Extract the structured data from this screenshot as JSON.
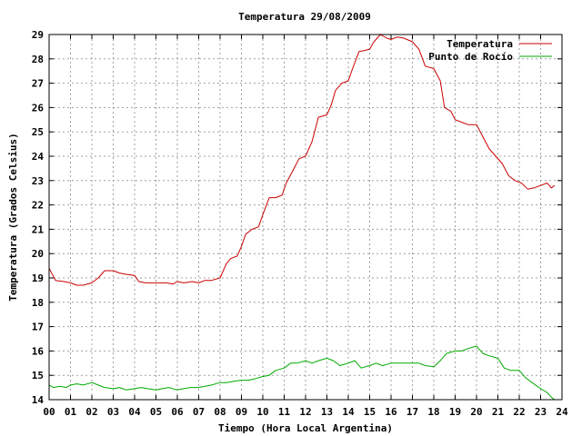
{
  "chart_data": {
    "type": "line",
    "title": "Temperatura 29/08/2009",
    "xlabel": "Tiempo (Hora Local Argentina)",
    "ylabel": "Temperatura (Grados Celsius)",
    "xlim": [
      0,
      24
    ],
    "ylim": [
      14,
      29
    ],
    "grid": true,
    "legend_position": "top-right",
    "x_ticks": [
      "00",
      "01",
      "02",
      "03",
      "04",
      "05",
      "06",
      "07",
      "08",
      "09",
      "10",
      "11",
      "12",
      "13",
      "14",
      "15",
      "16",
      "17",
      "18",
      "19",
      "20",
      "21",
      "22",
      "23",
      "24"
    ],
    "y_ticks": [
      "14",
      "15",
      "16",
      "17",
      "18",
      "19",
      "20",
      "21",
      "22",
      "23",
      "24",
      "25",
      "26",
      "27",
      "28",
      "29"
    ],
    "series": [
      {
        "name": "Temperatura",
        "color": "#cc0000",
        "points": [
          [
            0.0,
            19.4
          ],
          [
            0.3,
            18.9
          ],
          [
            0.7,
            18.85
          ],
          [
            1.0,
            18.8
          ],
          [
            1.3,
            18.7
          ],
          [
            1.6,
            18.7
          ],
          [
            2.0,
            18.8
          ],
          [
            2.3,
            19.0
          ],
          [
            2.6,
            19.3
          ],
          [
            3.0,
            19.3
          ],
          [
            3.3,
            19.2
          ],
          [
            3.6,
            19.15
          ],
          [
            4.0,
            19.1
          ],
          [
            4.2,
            18.85
          ],
          [
            4.5,
            18.8
          ],
          [
            5.0,
            18.8
          ],
          [
            5.5,
            18.8
          ],
          [
            5.8,
            18.75
          ],
          [
            6.0,
            18.85
          ],
          [
            6.3,
            18.8
          ],
          [
            6.7,
            18.85
          ],
          [
            7.0,
            18.8
          ],
          [
            7.3,
            18.9
          ],
          [
            7.6,
            18.9
          ],
          [
            8.0,
            19.0
          ],
          [
            8.3,
            19.6
          ],
          [
            8.5,
            19.8
          ],
          [
            8.8,
            19.9
          ],
          [
            9.0,
            20.3
          ],
          [
            9.2,
            20.8
          ],
          [
            9.5,
            21.0
          ],
          [
            9.8,
            21.1
          ],
          [
            10.0,
            21.6
          ],
          [
            10.3,
            22.3
          ],
          [
            10.6,
            22.3
          ],
          [
            10.9,
            22.4
          ],
          [
            11.1,
            22.9
          ],
          [
            11.4,
            23.4
          ],
          [
            11.7,
            23.9
          ],
          [
            12.0,
            24.0
          ],
          [
            12.3,
            24.6
          ],
          [
            12.6,
            25.6
          ],
          [
            13.0,
            25.7
          ],
          [
            13.2,
            26.1
          ],
          [
            13.4,
            26.7
          ],
          [
            13.7,
            27.0
          ],
          [
            14.0,
            27.1
          ],
          [
            14.2,
            27.6
          ],
          [
            14.5,
            28.3
          ],
          [
            14.8,
            28.35
          ],
          [
            15.0,
            28.4
          ],
          [
            15.2,
            28.7
          ],
          [
            15.5,
            29.0
          ],
          [
            15.8,
            28.85
          ],
          [
            16.0,
            28.8
          ],
          [
            16.3,
            28.9
          ],
          [
            16.6,
            28.85
          ],
          [
            17.0,
            28.7
          ],
          [
            17.3,
            28.4
          ],
          [
            17.6,
            27.7
          ],
          [
            18.0,
            27.6
          ],
          [
            18.3,
            27.1
          ],
          [
            18.5,
            26.0
          ],
          [
            18.8,
            25.85
          ],
          [
            19.0,
            25.5
          ],
          [
            19.3,
            25.4
          ],
          [
            19.6,
            25.3
          ],
          [
            20.0,
            25.3
          ],
          [
            20.3,
            24.8
          ],
          [
            20.6,
            24.3
          ],
          [
            20.9,
            24.0
          ],
          [
            21.2,
            23.7
          ],
          [
            21.5,
            23.2
          ],
          [
            21.8,
            23.0
          ],
          [
            22.1,
            22.9
          ],
          [
            22.4,
            22.65
          ],
          [
            22.7,
            22.7
          ],
          [
            23.0,
            22.8
          ],
          [
            23.3,
            22.9
          ],
          [
            23.5,
            22.7
          ],
          [
            23.65,
            22.8
          ]
        ]
      },
      {
        "name": "Punto de Rocío",
        "color": "#00aa00",
        "points": [
          [
            0.0,
            14.6
          ],
          [
            0.2,
            14.5
          ],
          [
            0.5,
            14.55
          ],
          [
            0.8,
            14.5
          ],
          [
            1.0,
            14.6
          ],
          [
            1.3,
            14.65
          ],
          [
            1.6,
            14.6
          ],
          [
            2.0,
            14.7
          ],
          [
            2.3,
            14.6
          ],
          [
            2.6,
            14.5
          ],
          [
            3.0,
            14.45
          ],
          [
            3.3,
            14.5
          ],
          [
            3.6,
            14.4
          ],
          [
            4.0,
            14.45
          ],
          [
            4.3,
            14.5
          ],
          [
            4.6,
            14.45
          ],
          [
            5.0,
            14.4
          ],
          [
            5.3,
            14.45
          ],
          [
            5.6,
            14.5
          ],
          [
            6.0,
            14.4
          ],
          [
            6.3,
            14.45
          ],
          [
            6.6,
            14.5
          ],
          [
            7.0,
            14.5
          ],
          [
            7.3,
            14.55
          ],
          [
            7.6,
            14.6
          ],
          [
            8.0,
            14.7
          ],
          [
            8.3,
            14.7
          ],
          [
            8.6,
            14.75
          ],
          [
            9.0,
            14.8
          ],
          [
            9.3,
            14.8
          ],
          [
            9.6,
            14.85
          ],
          [
            10.0,
            14.95
          ],
          [
            10.3,
            15.0
          ],
          [
            10.6,
            15.2
          ],
          [
            11.0,
            15.3
          ],
          [
            11.3,
            15.5
          ],
          [
            11.6,
            15.5
          ],
          [
            12.0,
            15.6
          ],
          [
            12.3,
            15.5
          ],
          [
            12.6,
            15.6
          ],
          [
            13.0,
            15.7
          ],
          [
            13.3,
            15.6
          ],
          [
            13.6,
            15.4
          ],
          [
            14.0,
            15.5
          ],
          [
            14.3,
            15.6
          ],
          [
            14.6,
            15.3
          ],
          [
            15.0,
            15.4
          ],
          [
            15.3,
            15.5
          ],
          [
            15.6,
            15.4
          ],
          [
            16.0,
            15.5
          ],
          [
            16.3,
            15.5
          ],
          [
            16.6,
            15.5
          ],
          [
            17.0,
            15.5
          ],
          [
            17.3,
            15.5
          ],
          [
            17.6,
            15.4
          ],
          [
            18.0,
            15.35
          ],
          [
            18.3,
            15.6
          ],
          [
            18.6,
            15.9
          ],
          [
            19.0,
            16.0
          ],
          [
            19.3,
            16.0
          ],
          [
            19.6,
            16.1
          ],
          [
            20.0,
            16.2
          ],
          [
            20.3,
            15.9
          ],
          [
            20.6,
            15.8
          ],
          [
            21.0,
            15.7
          ],
          [
            21.3,
            15.3
          ],
          [
            21.6,
            15.2
          ],
          [
            22.0,
            15.2
          ],
          [
            22.3,
            14.9
          ],
          [
            22.6,
            14.7
          ],
          [
            23.0,
            14.45
          ],
          [
            23.3,
            14.3
          ],
          [
            23.5,
            14.1
          ],
          [
            23.65,
            14.0
          ]
        ]
      }
    ]
  }
}
